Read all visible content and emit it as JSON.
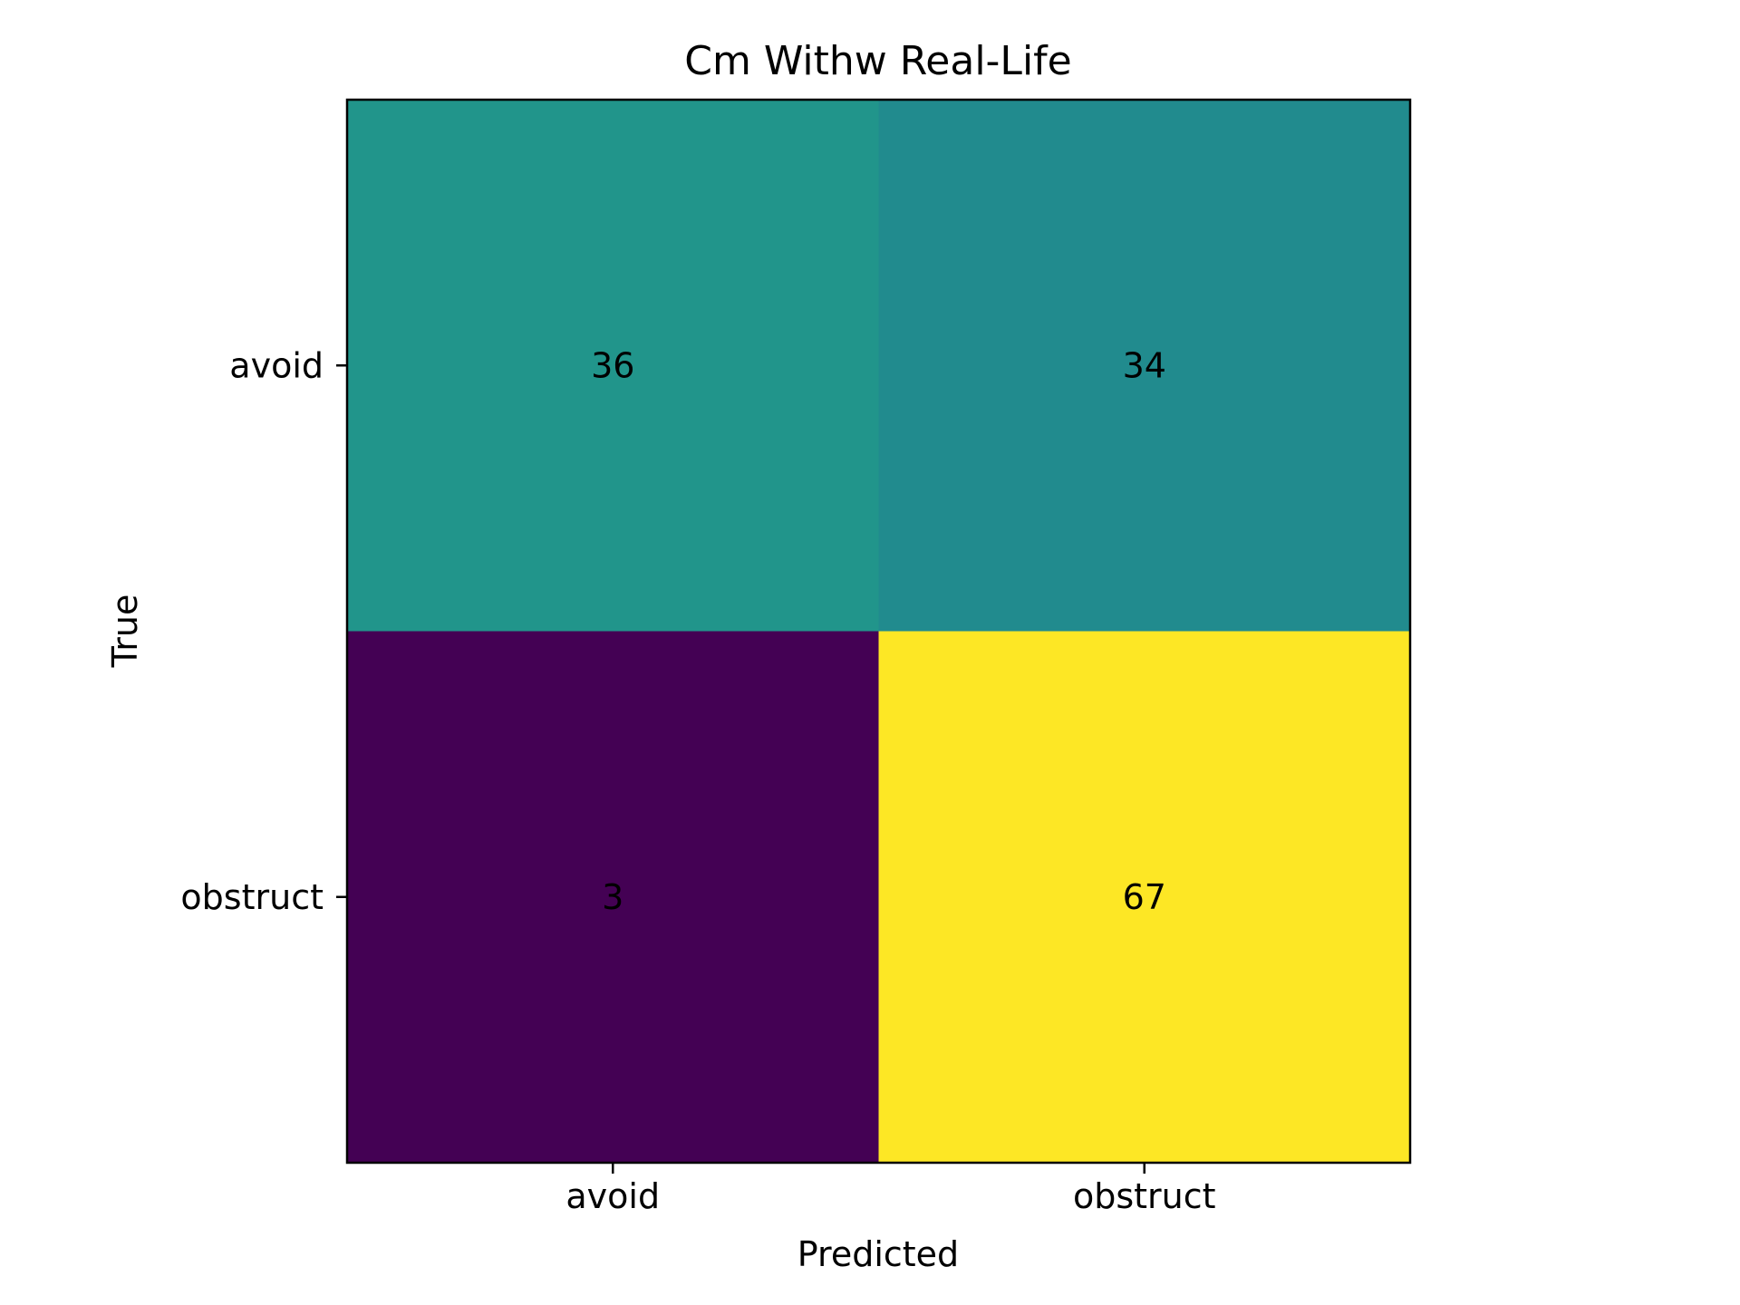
{
  "chart_data": {
    "type": "heatmap",
    "title": "Cm Withw Real-Life",
    "xlabel": "Predicted",
    "ylabel": "True",
    "x_categories": [
      "avoid",
      "obstruct"
    ],
    "y_categories": [
      "avoid",
      "obstruct"
    ],
    "values": [
      [
        36,
        34
      ],
      [
        3,
        67
      ]
    ],
    "colormap": "viridis",
    "cell_colors": [
      [
        "#21958b",
        "#218b8e"
      ],
      [
        "#440154",
        "#fde725"
      ]
    ],
    "grid": false,
    "legend": "none"
  }
}
